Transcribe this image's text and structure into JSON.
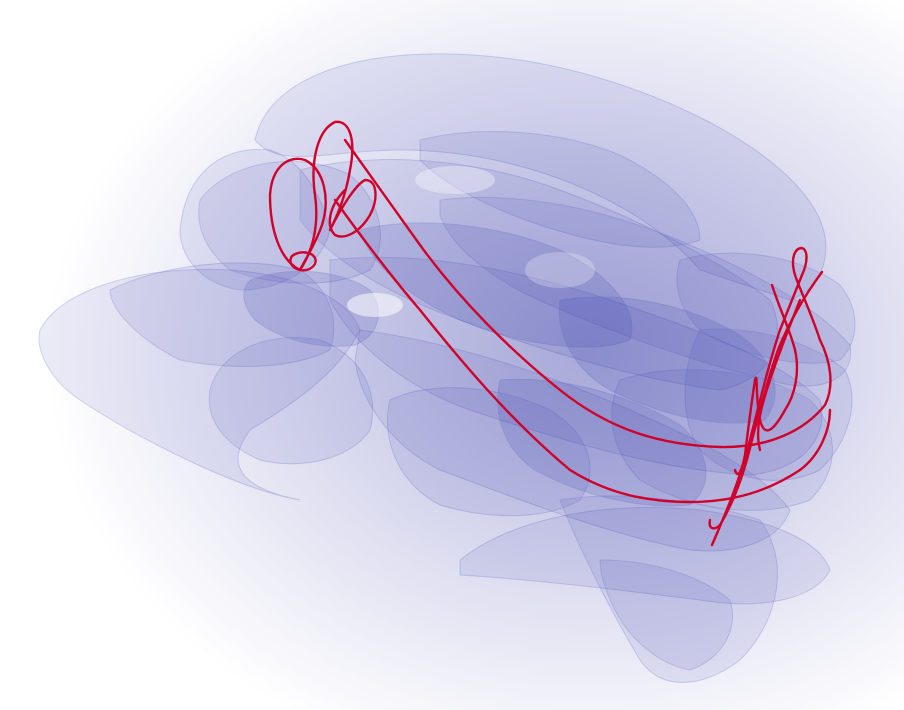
{
  "scene": {
    "kind": "3d-surface-render",
    "surface_color": "#3a3fb0",
    "surface_edge_color": "#8a8fd6",
    "background_color": "#ffffff",
    "curve_color": "#d0002a",
    "curve_shadow_color": "#7a0030"
  }
}
